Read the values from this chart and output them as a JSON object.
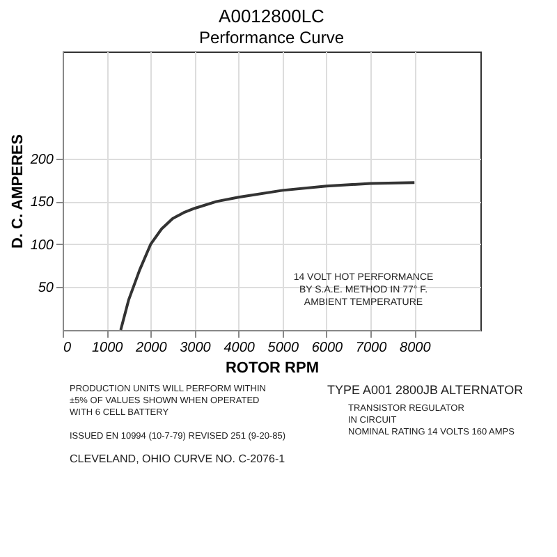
{
  "chart_data": {
    "type": "line",
    "title": "A0012800LC",
    "subtitle": "Performance Curve",
    "xlabel": "ROTOR RPM",
    "ylabel": "D. C. AMPERES",
    "x": [
      1320,
      1500,
      1750,
      2000,
      2250,
      2500,
      2750,
      3000,
      3500,
      4000,
      5000,
      6000,
      7000,
      8000
    ],
    "series": [
      {
        "color": "#333333",
        "values": [
          0,
          35,
          70,
          100,
          118,
          130,
          137,
          142,
          150,
          155,
          163,
          168,
          171,
          172
        ]
      }
    ],
    "xlim": [
      0,
      9500
    ],
    "xticks": [
      0,
      1000,
      2000,
      3000,
      4000,
      5000,
      6000,
      7000,
      8000
    ],
    "ylim": [
      0,
      325
    ],
    "yticks": [
      50,
      100,
      150,
      200
    ],
    "grid": true,
    "marker": "none",
    "line_style": "solid",
    "annotations": [
      "14 VOLT HOT PERFORMANCE\nBY S.A.E. METHOD IN 77° F.\nAMBIENT TEMPERATURE",
      "PRODUCTION UNITS WILL PERFORM WITHIN\n±5% OF VALUES SHOWN WHEN OPERATED\nWITH 6 CELL BATTERY",
      "TYPE A001 2800JB ALTERNATOR",
      "TRANSISTOR REGULATOR\nIN CIRCUIT\nNOMINAL RATING 14 VOLTS 160 AMPS",
      "ISSUED EN 10994 (10-7-79) REVISED 251 (9-20-85)",
      "CLEVELAND, OHIO  CURVE NO. C-2076-1"
    ]
  }
}
